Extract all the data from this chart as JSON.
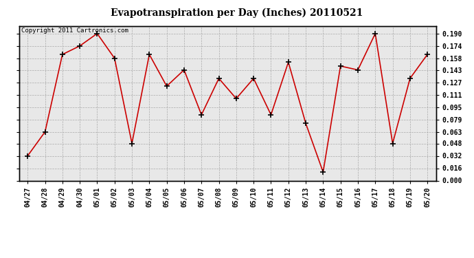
{
  "title": "Evapotranspiration per Day (Inches) 20110521",
  "copyright": "Copyright 2011 Cartronics.com",
  "x_labels": [
    "04/27",
    "04/28",
    "04/29",
    "04/30",
    "05/01",
    "05/02",
    "05/03",
    "05/04",
    "05/05",
    "05/06",
    "05/07",
    "05/08",
    "05/09",
    "05/10",
    "05/11",
    "05/12",
    "05/13",
    "05/14",
    "05/15",
    "05/16",
    "05/17",
    "05/18",
    "05/19",
    "05/20"
  ],
  "y_values": [
    0.032,
    0.063,
    0.163,
    0.174,
    0.19,
    0.158,
    0.048,
    0.163,
    0.122,
    0.143,
    0.085,
    0.132,
    0.106,
    0.132,
    0.085,
    0.153,
    0.074,
    0.011,
    0.148,
    0.143,
    0.19,
    0.048,
    0.132,
    0.163
  ],
  "line_color": "#cc0000",
  "marker_color": "#000000",
  "bg_color": "#ffffff",
  "plot_bg_color": "#e8e8e8",
  "grid_color": "#aaaaaa",
  "ylim": [
    0.0,
    0.2
  ],
  "yticks": [
    0.0,
    0.016,
    0.032,
    0.048,
    0.063,
    0.079,
    0.095,
    0.111,
    0.127,
    0.143,
    0.158,
    0.174,
    0.19
  ],
  "title_fontsize": 10,
  "tick_fontsize": 7,
  "copyright_fontsize": 6.5
}
